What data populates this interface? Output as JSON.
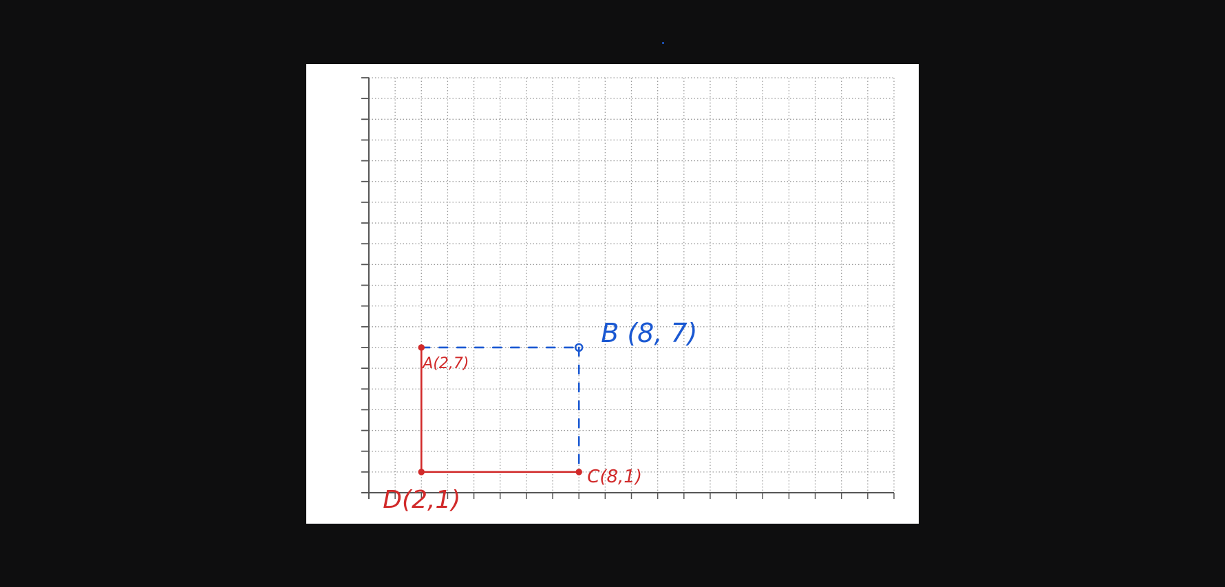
{
  "colors": {
    "background": "#0e0e0f",
    "paper": "#ffffff",
    "grid": "#9a9a9a",
    "axis": "#555555",
    "red_ink": "#d12a2a",
    "blue_ink": "#1a58d2"
  },
  "chart_data": {
    "type": "scatter",
    "grid": true,
    "xlim": [
      0,
      20
    ],
    "ylim": [
      0,
      20
    ],
    "points": [
      {
        "id": "A",
        "x": 2,
        "y": 7,
        "label": "A(2,7)",
        "color": "red"
      },
      {
        "id": "B",
        "x": 8,
        "y": 7,
        "label": "B (8, 7)",
        "color": "blue"
      },
      {
        "id": "C",
        "x": 8,
        "y": 1,
        "label": "C(8,1)",
        "color": "red"
      },
      {
        "id": "D",
        "x": 2,
        "y": 1,
        "label": "D(2,1)",
        "color": "red"
      }
    ],
    "segments": [
      {
        "from": "A",
        "to": "D",
        "style": "solid",
        "color": "red"
      },
      {
        "from": "D",
        "to": "C",
        "style": "solid",
        "color": "red"
      },
      {
        "from": "A",
        "to": "B",
        "style": "dashed",
        "color": "blue"
      },
      {
        "from": "B",
        "to": "C",
        "style": "dashed",
        "color": "blue"
      }
    ]
  }
}
